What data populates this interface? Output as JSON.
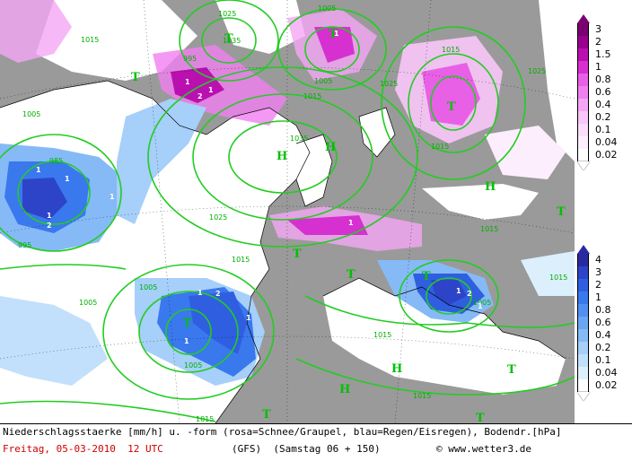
{
  "map": {
    "pressure_labels": [
      "1025",
      "1005",
      "1015",
      "1035",
      "1025",
      "995",
      "1015",
      "1005",
      "1015",
      "1005",
      "1025",
      "1035",
      "1025",
      "1015",
      "985",
      "995",
      "1015",
      "1005",
      "1005",
      "1015",
      "1005",
      "1015",
      "1015",
      "1015",
      "1005",
      "1015"
    ],
    "system_letters": [
      "T",
      "T",
      "T",
      "T",
      "H",
      "H",
      "H",
      "T",
      "T",
      "T",
      "T",
      "T",
      "H",
      "H",
      "T",
      "T",
      "T"
    ],
    "precip_labels": [
      "1",
      "1",
      "2",
      "1",
      "1",
      "1",
      "1",
      "1",
      "2",
      "2",
      "1",
      "1",
      "1",
      "1",
      "1",
      "2",
      "1"
    ]
  },
  "legend_snow": {
    "title": "Schnee/Graupel",
    "levels": [
      "3",
      "2",
      "1.5",
      "1",
      "0.8",
      "0.6",
      "0.4",
      "0.2",
      "0.1",
      "0.04",
      "0.02"
    ],
    "colors": [
      "#7a0070",
      "#990090",
      "#bb10b0",
      "#d630d0",
      "#e860e6",
      "#f080f0",
      "#f4a6f4",
      "#f8c6f8",
      "#fbdcfb",
      "#fdeefd",
      "#ffffff"
    ]
  },
  "legend_rain": {
    "title": "Regen/Eisregen",
    "levels": [
      "4",
      "3",
      "2",
      "1",
      "0.8",
      "0.6",
      "0.4",
      "0.2",
      "0.1",
      "0.04",
      "0.02"
    ],
    "colors": [
      "#2a2aa0",
      "#2e44c8",
      "#2f5fe0",
      "#3a78ee",
      "#5190f0",
      "#6aa6f3",
      "#86baf6",
      "#a6cff9",
      "#c2e0fb",
      "#dceffd",
      "#ffffff"
    ]
  },
  "footer": {
    "line1": "Niederschlagsstaerke [mm/h] u. -form (rosa=Schnee/Graupel, blau=Regen/Eisregen), Bodendr.[hPa]",
    "date_text": "Freitag, 05-03-2010  12 UTC",
    "model_text": "(GFS)  (Samstag 06 + 150)",
    "copyright_text": "© www.wetter3.de"
  },
  "colors": {
    "sea": "#ffffff",
    "land": "#9a9a9a",
    "isobar": "#22cc22",
    "date_red": "#cc0000"
  }
}
